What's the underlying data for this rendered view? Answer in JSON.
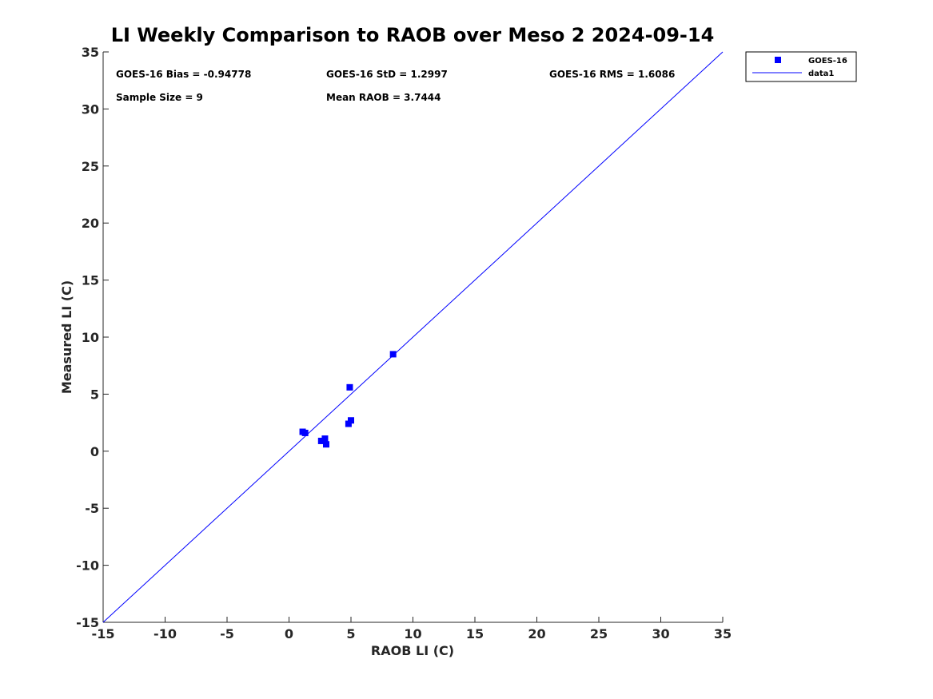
{
  "chart_data": {
    "type": "scatter",
    "title": "LI Weekly Comparison to RAOB over Meso 2 2024-09-14",
    "xlabel": "RAOB LI (C)",
    "ylabel": "Measured LI (C)",
    "xlim": [
      -15,
      35
    ],
    "ylim": [
      -15,
      35
    ],
    "xticks": [
      -15,
      -10,
      -5,
      0,
      5,
      10,
      15,
      20,
      25,
      30,
      35
    ],
    "yticks": [
      -15,
      -10,
      -5,
      0,
      5,
      10,
      15,
      20,
      25,
      30,
      35
    ],
    "xtick_labels": [
      "-15",
      "-10",
      "-5",
      "0",
      "5",
      "10",
      "15",
      "20",
      "25",
      "30",
      "35"
    ],
    "ytick_labels": [
      "-15",
      "-10",
      "-5",
      "0",
      "5",
      "10",
      "15",
      "20",
      "25",
      "30",
      "35"
    ],
    "grid": false,
    "series": [
      {
        "name": "GOES-16",
        "kind": "scatter",
        "marker": "square",
        "color": "#0000ff",
        "x": [
          1.1,
          1.3,
          2.6,
          2.9,
          3.0,
          4.8,
          4.9,
          5.0,
          8.4
        ],
        "y": [
          1.7,
          1.6,
          0.9,
          1.1,
          0.6,
          2.4,
          5.6,
          2.7,
          8.5
        ]
      },
      {
        "name": "data1",
        "kind": "line",
        "color": "#0000ff",
        "x": [
          -15,
          35
        ],
        "y": [
          -15,
          35
        ]
      }
    ],
    "annotations": [
      "GOES-16 Bias = -0.94778",
      "GOES-16 StD = 1.2997",
      "GOES-16 RMS = 1.6086",
      "Sample Size = 9",
      "Mean RAOB = 3.7444"
    ],
    "legend": {
      "placement": "outside-top-right",
      "entries": [
        "GOES-16",
        "data1"
      ]
    }
  }
}
